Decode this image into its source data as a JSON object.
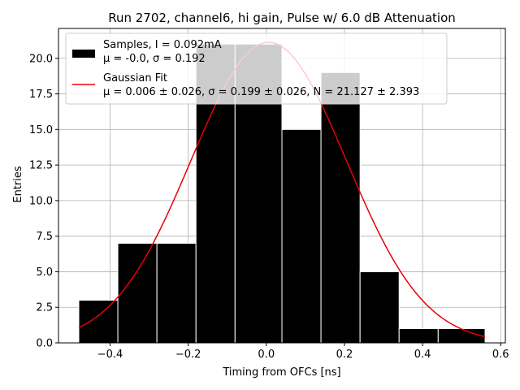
{
  "chart_data": {
    "type": "bar",
    "title": "Run 2702, channel6, hi gain, Pulse w/ 6.0 dB Attenuation",
    "xlabel": "Timing from OFCs [ns]",
    "ylabel": "Entries",
    "xlim": [
      -0.532,
      0.612
    ],
    "ylim": [
      0.0,
      22.1
    ],
    "xticks": [
      -0.4,
      -0.2,
      0.0,
      0.2,
      0.4,
      0.6
    ],
    "xtick_labels": [
      "−0.4",
      "−0.2",
      "0.0",
      "0.2",
      "0.4",
      "0.6"
    ],
    "yticks": [
      0.0,
      2.5,
      5.0,
      7.5,
      10.0,
      12.5,
      15.0,
      17.5,
      20.0
    ],
    "ytick_labels": [
      "0.0",
      "2.5",
      "5.0",
      "7.5",
      "10.0",
      "12.5",
      "15.0",
      "17.5",
      "20.0"
    ],
    "grid": true,
    "legend_position": "top-left",
    "histogram": {
      "name": "Samples, I = 0.092mA",
      "stats_label": "μ = -0.0, σ = 0.192",
      "color": "#000000",
      "edge_color": "#ffffff",
      "bins": [
        {
          "x0": -0.48,
          "x1": -0.38,
          "count": 3
        },
        {
          "x0": -0.38,
          "x1": -0.28,
          "count": 7
        },
        {
          "x0": -0.28,
          "x1": -0.18,
          "count": 7
        },
        {
          "x0": -0.18,
          "x1": -0.08,
          "count": 21
        },
        {
          "x0": -0.08,
          "x1": 0.04,
          "count": 21
        },
        {
          "x0": 0.04,
          "x1": 0.14,
          "count": 15
        },
        {
          "x0": 0.14,
          "x1": 0.24,
          "count": 19
        },
        {
          "x0": 0.24,
          "x1": 0.34,
          "count": 5
        },
        {
          "x0": 0.34,
          "x1": 0.44,
          "count": 1
        },
        {
          "x0": 0.44,
          "x1": 0.56,
          "count": 1
        }
      ]
    },
    "fit": {
      "name": "Gaussian Fit",
      "params_label": "μ = 0.006 ± 0.026, σ = 0.199 ± 0.026, N = 21.127 ± 2.393",
      "color": "#e8000b",
      "mu": 0.006,
      "sigma": 0.199,
      "N": 21.127,
      "x_range": [
        -0.48,
        0.56
      ]
    }
  }
}
